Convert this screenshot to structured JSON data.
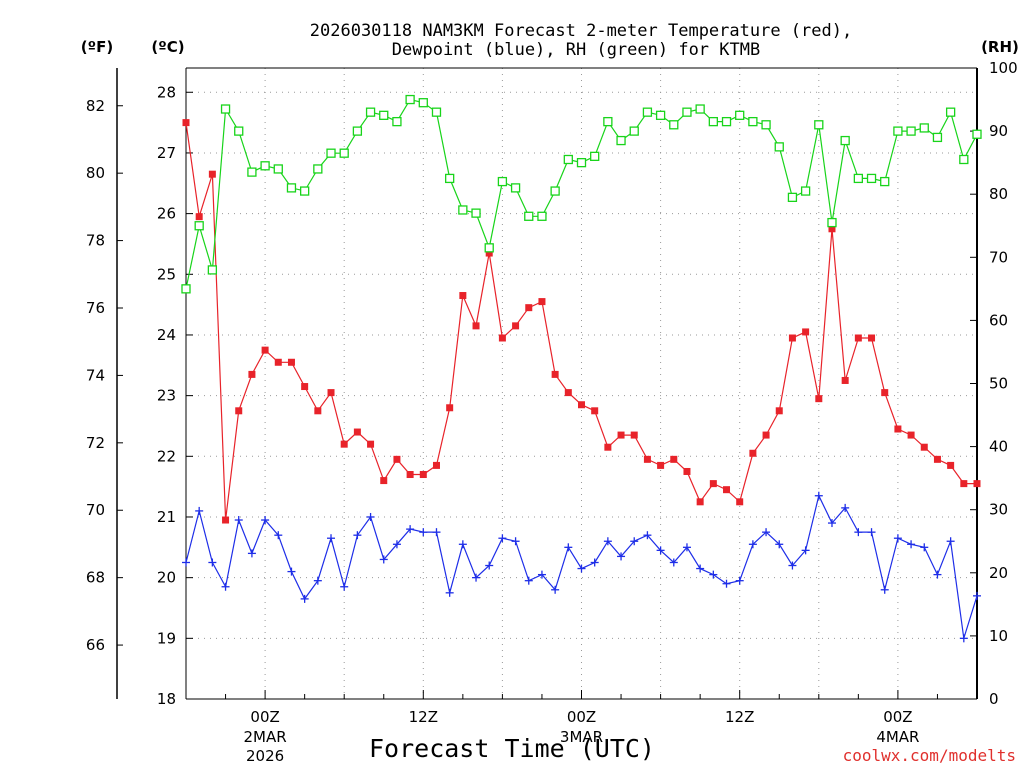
{
  "chart_data": {
    "type": "line",
    "title_line1": "2026030118 NAM3KM Forecast 2-meter Temperature (red),",
    "title_line2": "Dewpoint (blue), RH (green) for KTMB",
    "xlabel": "Forecast Time (UTC)",
    "credit": "coolwx.com/modelts",
    "units": {
      "fahrenheit": "(ºF)",
      "celsius": "(ºC)",
      "rh": "(RH)"
    },
    "axes": {
      "celsius": {
        "range": [
          18,
          28.4
        ],
        "ticks": [
          "18",
          "19",
          "20",
          "21",
          "22",
          "23",
          "24",
          "25",
          "26",
          "27",
          "28"
        ]
      },
      "fahrenheit": {
        "ticks": [
          "66",
          "68",
          "70",
          "72",
          "74",
          "76",
          "78",
          "80",
          "82"
        ]
      },
      "rh": {
        "range": [
          0,
          100
        ],
        "ticks": [
          "0",
          "10",
          "20",
          "30",
          "40",
          "50",
          "60",
          "70",
          "80",
          "90",
          "100"
        ]
      },
      "x": {
        "range": [
          18,
          78
        ],
        "unit": "forecast hour since 2026-03-01 00Z"
      }
    },
    "x_ticks": [
      {
        "label": "00Z",
        "sub1": "2MAR",
        "sub2": "2026",
        "hour": 24
      },
      {
        "label": "12Z",
        "sub1": "",
        "sub2": "",
        "hour": 36
      },
      {
        "label": "00Z",
        "sub1": "3MAR",
        "sub2": "",
        "hour": 48
      },
      {
        "label": "12Z",
        "sub1": "",
        "sub2": "",
        "hour": 60
      },
      {
        "label": "00Z",
        "sub1": "4MAR",
        "sub2": "",
        "hour": 72
      }
    ],
    "series": [
      {
        "name": "2-meter Temperature",
        "unit": "C",
        "color": "#e8232a",
        "marker": "filled-square",
        "x": [
          18,
          19,
          20,
          21,
          22,
          23,
          24,
          25,
          26,
          27,
          28,
          29,
          30,
          31,
          32,
          33,
          34,
          35,
          36,
          37,
          38,
          39,
          40,
          41,
          42,
          43,
          44,
          45,
          46,
          47,
          48,
          49,
          50,
          51,
          52,
          53,
          54,
          55,
          56,
          57,
          58,
          59,
          60,
          61,
          62,
          63,
          64,
          65,
          66,
          67,
          68,
          69,
          70,
          71,
          72,
          73,
          74,
          75,
          76,
          77,
          78
        ],
        "values": [
          27.5,
          25.95,
          26.65,
          20.95,
          22.75,
          23.35,
          23.75,
          23.55,
          23.55,
          23.15,
          22.75,
          23.05,
          22.2,
          22.4,
          22.2,
          21.6,
          21.95,
          21.7,
          21.7,
          21.85,
          22.8,
          24.65,
          24.15,
          25.35,
          23.95,
          24.15,
          24.45,
          24.55,
          23.35,
          23.05,
          22.85,
          22.75,
          22.15,
          22.35,
          22.35,
          21.95,
          21.85,
          21.95,
          21.75,
          21.25,
          21.55,
          21.45,
          21.25,
          22.05,
          22.35,
          22.75,
          23.95,
          24.05,
          22.95,
          25.75,
          23.25,
          23.95,
          23.95,
          23.05,
          22.45,
          22.35,
          22.15,
          21.95,
          21.85,
          21.55,
          21.55
        ]
      },
      {
        "name": "Dewpoint",
        "unit": "C",
        "color": "#1e2ee8",
        "marker": "plus",
        "x": [
          18,
          19,
          20,
          21,
          22,
          23,
          24,
          25,
          26,
          27,
          28,
          29,
          30,
          31,
          32,
          33,
          34,
          35,
          36,
          37,
          38,
          39,
          40,
          41,
          42,
          43,
          44,
          45,
          46,
          47,
          48,
          49,
          50,
          51,
          52,
          53,
          54,
          55,
          56,
          57,
          58,
          59,
          60,
          61,
          62,
          63,
          64,
          65,
          66,
          67,
          68,
          69,
          70,
          71,
          72,
          73,
          74,
          75,
          76,
          77,
          78
        ],
        "values": [
          20.25,
          21.1,
          20.25,
          19.85,
          20.95,
          20.4,
          20.95,
          20.7,
          20.1,
          19.65,
          19.95,
          20.65,
          19.85,
          20.7,
          21.0,
          20.3,
          20.55,
          20.8,
          20.75,
          20.75,
          19.75,
          20.55,
          20.0,
          20.2,
          20.65,
          20.6,
          19.95,
          20.05,
          19.8,
          20.5,
          20.15,
          20.25,
          20.6,
          20.35,
          20.6,
          20.7,
          20.45,
          20.25,
          20.5,
          20.15,
          20.05,
          19.9,
          19.95,
          20.55,
          20.75,
          20.55,
          20.2,
          20.45,
          21.35,
          20.9,
          21.15,
          20.75,
          20.75,
          19.8,
          20.65,
          20.55,
          20.5,
          20.05,
          20.6,
          19.0,
          19.7
        ]
      },
      {
        "name": "RH",
        "unit": "%",
        "color": "#18d41a",
        "marker": "open-square",
        "x": [
          18,
          19,
          20,
          21,
          22,
          23,
          24,
          25,
          26,
          27,
          28,
          29,
          30,
          31,
          32,
          33,
          34,
          35,
          36,
          37,
          38,
          39,
          40,
          41,
          42,
          43,
          44,
          45,
          46,
          47,
          48,
          49,
          50,
          51,
          52,
          53,
          54,
          55,
          56,
          57,
          58,
          59,
          60,
          61,
          62,
          63,
          64,
          65,
          66,
          67,
          68,
          69,
          70,
          71,
          72,
          73,
          74,
          75,
          76,
          77,
          78
        ],
        "values": [
          65,
          75,
          68,
          93.5,
          90,
          83.5,
          84.5,
          84,
          81,
          80.5,
          84,
          86.5,
          86.5,
          90,
          93,
          92.5,
          91.5,
          95,
          94.5,
          93,
          82.5,
          77.5,
          77,
          71.5,
          82,
          81,
          76.5,
          76.5,
          80.5,
          85.5,
          85,
          86,
          91.5,
          88.5,
          90,
          93,
          92.5,
          91,
          93,
          93.5,
          91.5,
          91.5,
          92.5,
          91.5,
          91,
          87.5,
          79.5,
          80.5,
          91,
          75.5,
          88.5,
          82.5,
          82.5,
          82,
          90,
          90,
          90.5,
          89,
          93,
          85.5,
          89.5
        ]
      }
    ]
  }
}
